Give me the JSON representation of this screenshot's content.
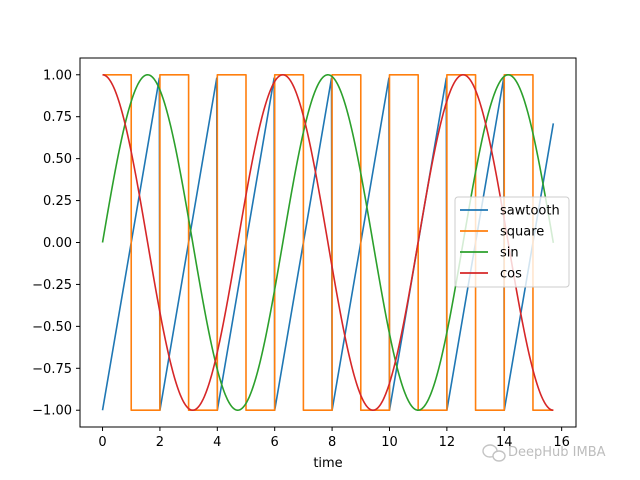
{
  "chart_data": {
    "type": "line",
    "title": "",
    "xlabel": "time",
    "ylabel": "",
    "xlim": [
      -0.785,
      16.5
    ],
    "ylim": [
      -1.1,
      1.1
    ],
    "xticks": [
      0,
      2,
      4,
      6,
      8,
      10,
      12,
      14,
      16
    ],
    "xtick_labels": [
      "0",
      "2",
      "4",
      "6",
      "8",
      "10",
      "12",
      "14",
      "16"
    ],
    "yticks": [
      -1.0,
      -0.75,
      -0.5,
      -0.25,
      0.0,
      0.25,
      0.5,
      0.75,
      1.0
    ],
    "ytick_labels": [
      "−1.00",
      "−0.75",
      "−0.50",
      "−0.25",
      "0.00",
      "0.25",
      "0.50",
      "0.75",
      "1.00"
    ],
    "grid": false,
    "legend_position": "center-right",
    "series": [
      {
        "name": "sawtooth",
        "color": "#1f77b4",
        "kind": "sawtooth",
        "period": 2,
        "x_range": [
          0,
          15.71
        ]
      },
      {
        "name": "square",
        "color": "#ff7f0e",
        "kind": "square",
        "period": 2,
        "x_range": [
          0,
          15.71
        ]
      },
      {
        "name": "sin",
        "color": "#2ca02c",
        "kind": "sin",
        "x_range": [
          0,
          15.71
        ]
      },
      {
        "name": "cos",
        "color": "#d62728",
        "kind": "cos",
        "x_range": [
          0,
          15.71
        ]
      }
    ]
  },
  "watermark": {
    "text": "DeepHub IMBA",
    "icon": "wechat-icon"
  }
}
